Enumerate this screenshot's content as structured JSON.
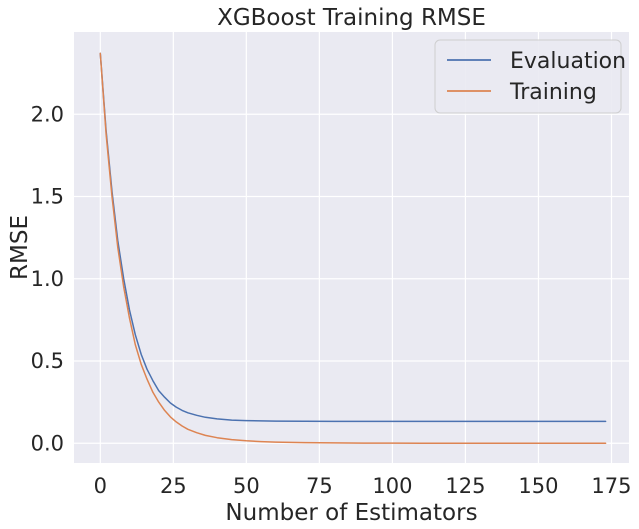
{
  "chart_data": {
    "type": "line",
    "title": "XGBoost Training RMSE",
    "xlabel": "Number of Estimators",
    "ylabel": "RMSE",
    "xlim": [
      -9,
      181
    ],
    "ylim": [
      -0.12,
      2.5
    ],
    "xticks": [
      0,
      25,
      50,
      75,
      100,
      125,
      150,
      175
    ],
    "yticks": [
      0.0,
      0.5,
      1.0,
      1.5,
      2.0
    ],
    "ytick_labels": [
      "0.0",
      "0.5",
      "1.0",
      "1.5",
      "2.0"
    ],
    "grid": true,
    "legend_position": "top-right",
    "background": "#eaeaf2",
    "x": [
      0,
      2,
      4,
      6,
      8,
      10,
      12,
      14,
      16,
      18,
      20,
      22,
      24,
      26,
      28,
      30,
      33,
      36,
      40,
      45,
      50,
      55,
      60,
      70,
      80,
      90,
      100,
      110,
      120,
      130,
      140,
      150,
      160,
      173
    ],
    "series": [
      {
        "name": "Evaluation",
        "color": "#4c72b0",
        "values": [
          2.37,
          1.9,
          1.53,
          1.23,
          1.0,
          0.81,
          0.66,
          0.54,
          0.45,
          0.38,
          0.32,
          0.28,
          0.245,
          0.22,
          0.2,
          0.185,
          0.17,
          0.158,
          0.148,
          0.141,
          0.138,
          0.136,
          0.135,
          0.134,
          0.133,
          0.133,
          0.133,
          0.133,
          0.133,
          0.133,
          0.133,
          0.133,
          0.133,
          0.133
        ]
      },
      {
        "name": "Training",
        "color": "#dd8452",
        "values": [
          2.37,
          1.88,
          1.5,
          1.19,
          0.95,
          0.76,
          0.6,
          0.48,
          0.39,
          0.31,
          0.25,
          0.2,
          0.16,
          0.13,
          0.105,
          0.085,
          0.064,
          0.048,
          0.034,
          0.022,
          0.015,
          0.01,
          0.007,
          0.004,
          0.002,
          0.001,
          0.0008,
          0.0005,
          0.0003,
          0.0002,
          0.0001,
          0.0001,
          0.0001,
          0.0001
        ]
      }
    ]
  }
}
